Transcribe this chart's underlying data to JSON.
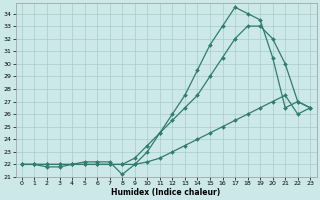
{
  "xlabel": "Humidex (Indice chaleur)",
  "bg_color": "#cde8e8",
  "grid_color": "#a8cccc",
  "line_color": "#2e7d6e",
  "xlim": [
    -0.5,
    23.5
  ],
  "ylim": [
    21.0,
    34.8
  ],
  "yticks": [
    21,
    22,
    23,
    24,
    25,
    26,
    27,
    28,
    29,
    30,
    31,
    32,
    33,
    34
  ],
  "xticks": [
    0,
    1,
    2,
    3,
    4,
    5,
    6,
    7,
    8,
    9,
    10,
    11,
    12,
    13,
    14,
    15,
    16,
    17,
    18,
    19,
    20,
    21,
    22,
    23
  ],
  "line1_x": [
    0,
    1,
    2,
    3,
    4,
    5,
    6,
    7,
    8,
    9,
    10,
    11,
    12,
    13,
    14,
    15,
    16,
    17,
    18,
    19,
    20,
    21,
    22,
    23
  ],
  "line1_y": [
    22,
    22,
    22,
    22,
    22,
    22,
    22,
    22,
    22,
    22.5,
    23.5,
    24.5,
    25.5,
    26.5,
    27.5,
    29,
    30.5,
    32,
    33,
    33,
    32,
    30,
    27,
    26.5
  ],
  "line2_x": [
    0,
    1,
    2,
    3,
    4,
    5,
    6,
    7,
    8,
    9,
    10,
    11,
    12,
    13,
    14,
    15,
    16,
    17,
    18,
    19,
    20,
    21,
    22,
    23
  ],
  "line2_y": [
    22,
    22,
    21.8,
    21.8,
    22,
    22.2,
    22.2,
    22.2,
    21.2,
    22,
    23,
    24.5,
    26,
    27.5,
    29.5,
    31.5,
    33,
    34.5,
    34,
    33.5,
    30.5,
    26.5,
    27,
    26.5
  ],
  "line3_x": [
    0,
    1,
    2,
    3,
    4,
    5,
    6,
    7,
    8,
    9,
    10,
    11,
    12,
    13,
    14,
    15,
    16,
    17,
    18,
    19,
    20,
    21,
    22,
    23
  ],
  "line3_y": [
    22,
    22,
    22,
    22,
    22,
    22,
    22,
    22,
    22,
    22,
    22.2,
    22.5,
    23,
    23.5,
    24,
    24.5,
    25,
    25.5,
    26,
    26.5,
    27,
    27.5,
    26,
    26.5
  ]
}
